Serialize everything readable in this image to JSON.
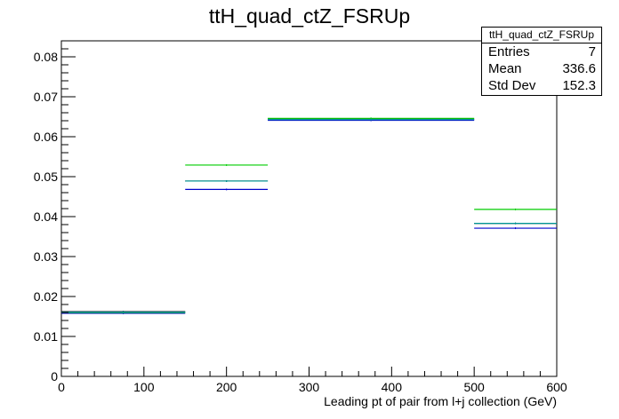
{
  "chart_data": {
    "type": "histogram",
    "title": "ttH_quad_ctZ_FSRUp",
    "xlabel": "Leading pt of pair from l+j collection (GeV)",
    "ylabel": "",
    "xlim": [
      0,
      600
    ],
    "ylim": [
      0,
      0.084
    ],
    "x_ticks": [
      0,
      100,
      200,
      300,
      400,
      500,
      600
    ],
    "y_ticks": [
      0,
      0.01,
      0.02,
      0.03,
      0.04,
      0.05,
      0.06,
      0.07,
      0.08
    ],
    "y_tick_labels": [
      "0",
      "0.01",
      "0.02",
      "0.03",
      "0.04",
      "0.05",
      "0.06",
      "0.07",
      "0.08"
    ],
    "bin_edges": [
      0,
      150,
      250,
      500,
      600
    ],
    "grid": false,
    "series": [
      {
        "color": "#000000",
        "values": [
          0.0162,
          0.0489,
          0.0644,
          0.0383
        ]
      },
      {
        "color": "#0000cc",
        "values": [
          0.0158,
          0.0468,
          0.0641,
          0.0371
        ]
      },
      {
        "color": "#00cc00",
        "values": [
          0.016,
          0.0529,
          0.0646,
          0.0418
        ]
      },
      {
        "color": "#009999",
        "values": [
          0.0161,
          0.0489,
          0.0643,
          0.0383
        ]
      }
    ]
  },
  "stats": {
    "title": "ttH_quad_ctZ_FSRUp",
    "rows": [
      {
        "label": "Entries",
        "value": "7"
      },
      {
        "label": "Mean",
        "value": "336.6"
      },
      {
        "label": "Std Dev",
        "value": "152.3"
      }
    ]
  }
}
